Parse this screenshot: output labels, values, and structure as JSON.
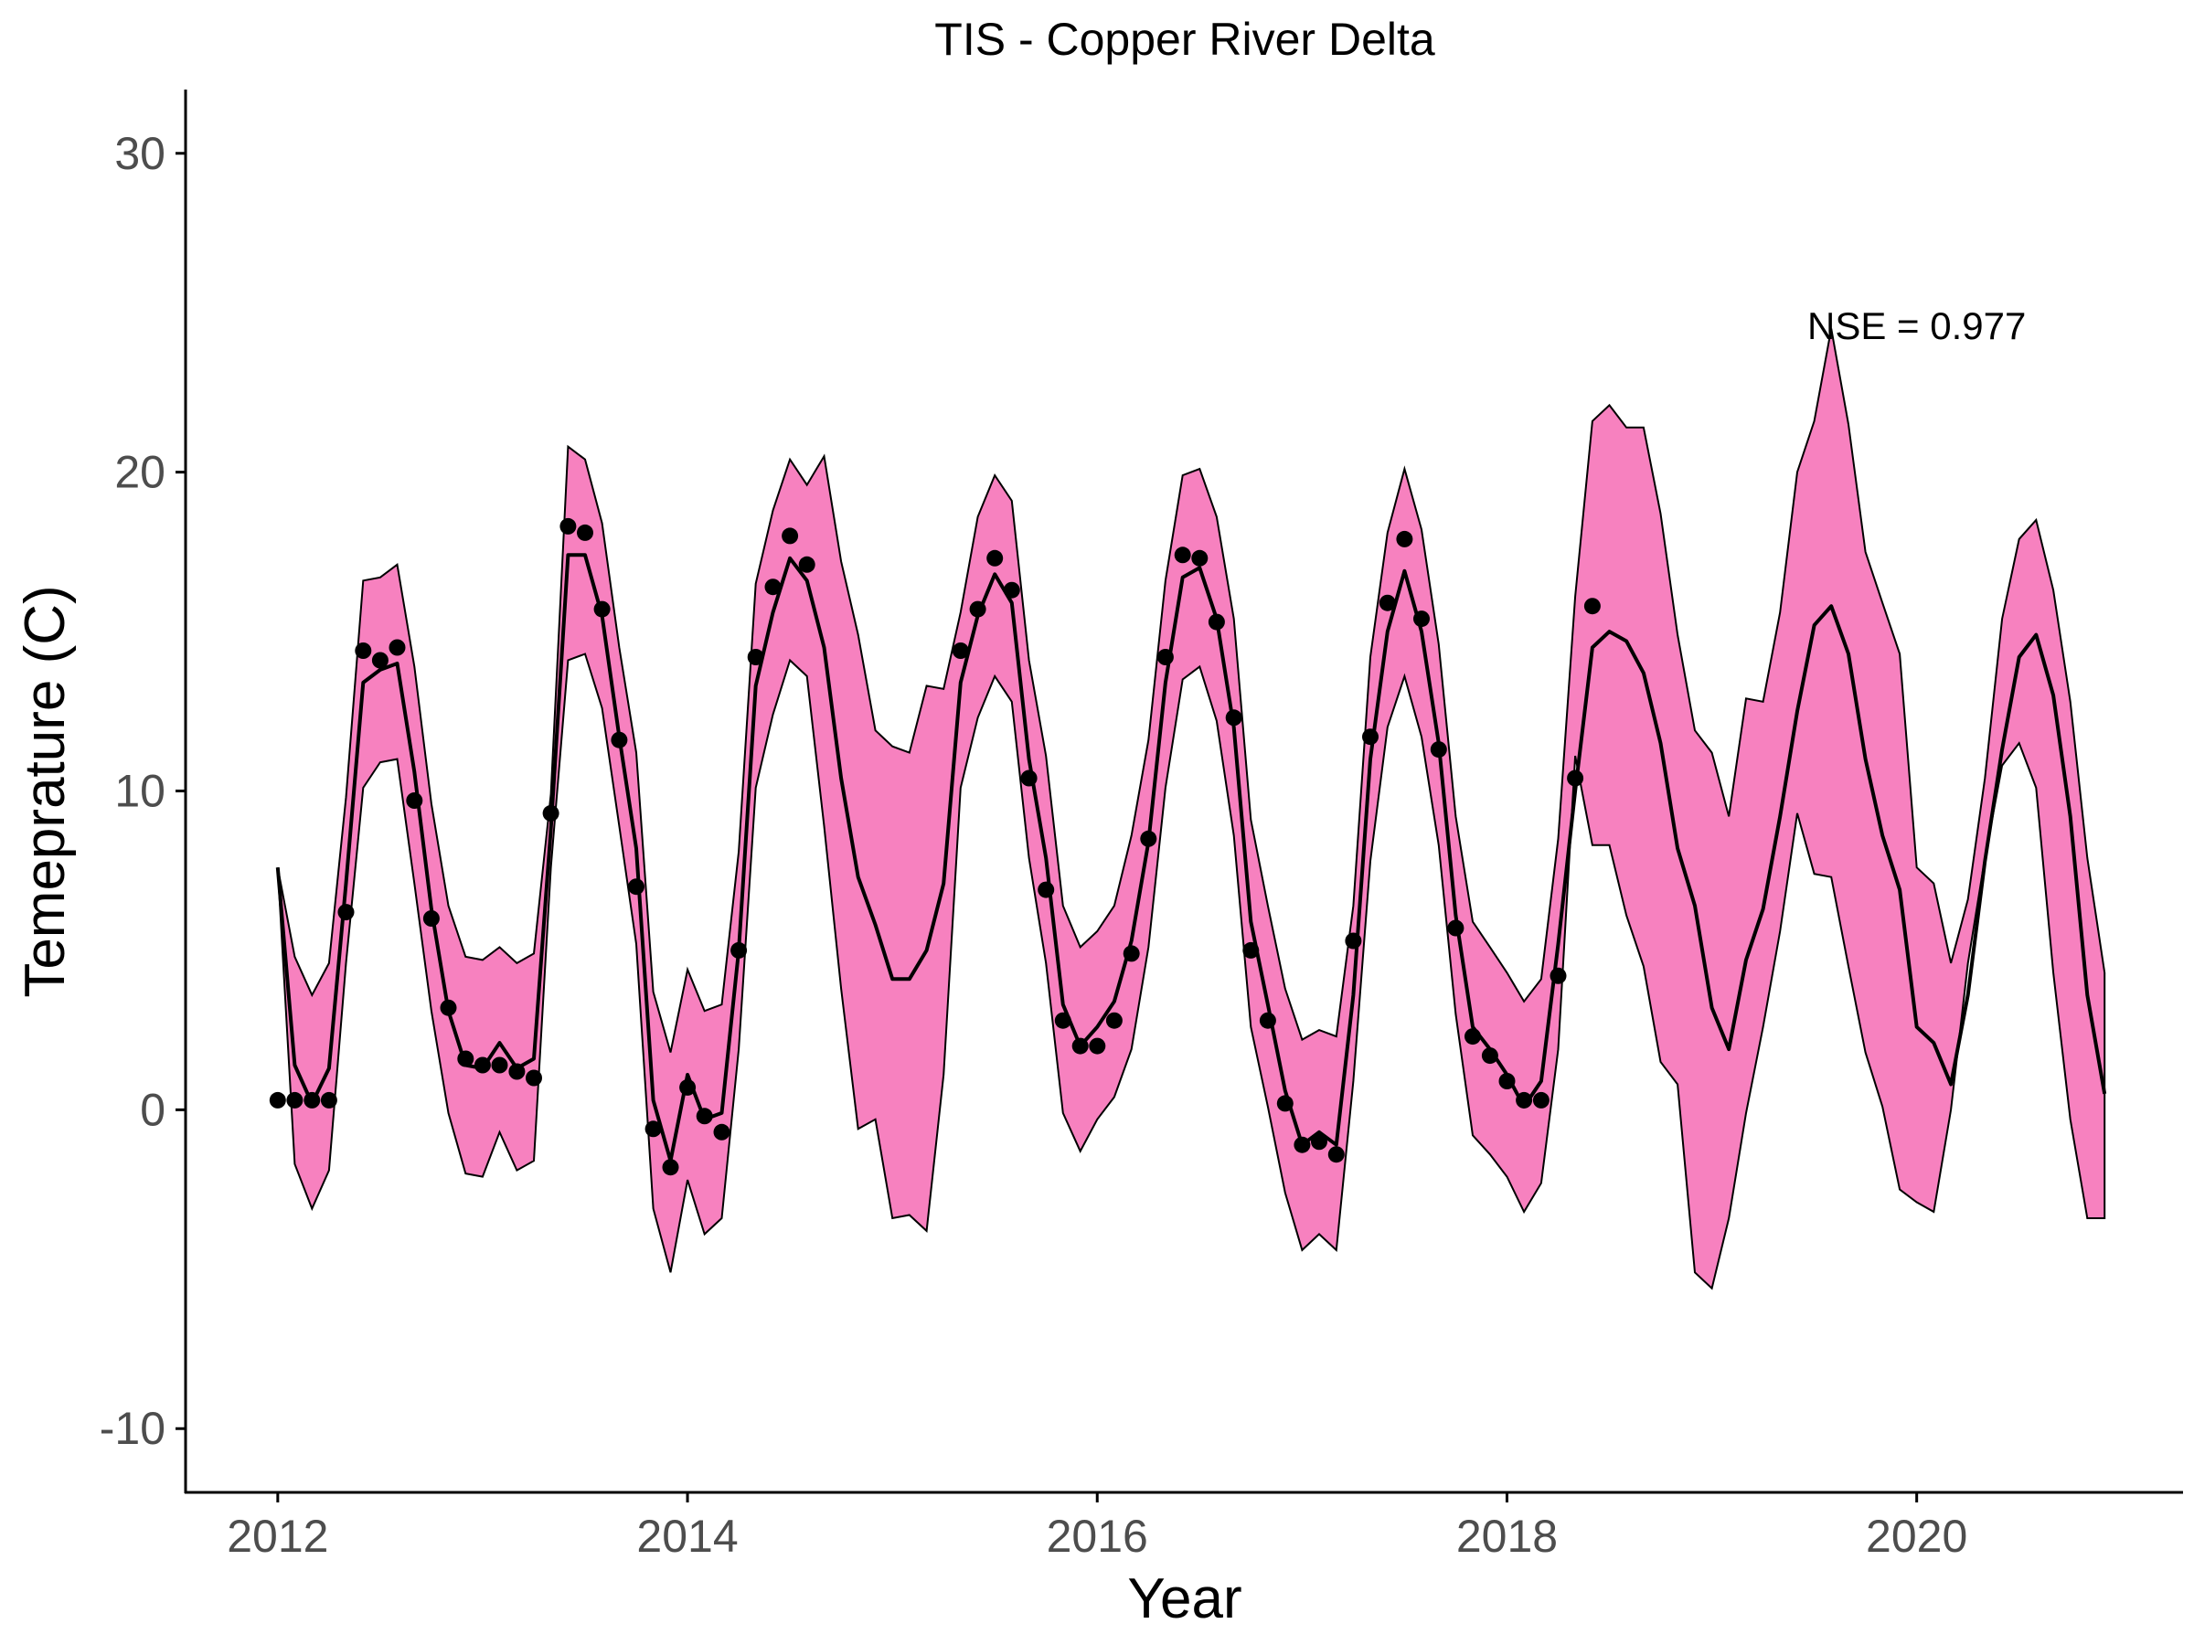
{
  "chart_data": {
    "type": "line",
    "title": "TIS - Copper River Delta",
    "xlabel": "Year",
    "ylabel": "Temeprature (C)",
    "xlim": [
      2011.55,
      2021.3
    ],
    "ylim": [
      -12,
      32
    ],
    "x_ticks": [
      2012,
      2014,
      2016,
      2018,
      2020
    ],
    "y_ticks": [
      -10,
      0,
      10,
      20,
      30
    ],
    "grid": false,
    "legend": "none",
    "annotation": {
      "text": "NSE = 0.977",
      "x": 2020.0,
      "y": 24.6
    },
    "colors": {
      "band_fill": "#f781bf",
      "line": "#000000",
      "points": "#000000"
    },
    "series": [
      {
        "kind": "interval_band",
        "x": [
          2012.0,
          2012.083,
          2012.167,
          2012.25,
          2012.333,
          2012.417,
          2012.5,
          2012.583,
          2012.667,
          2012.75,
          2012.833,
          2012.917,
          2013.0,
          2013.083,
          2013.167,
          2013.25,
          2013.333,
          2013.417,
          2013.5,
          2013.583,
          2013.667,
          2013.75,
          2013.833,
          2013.917,
          2014.0,
          2014.083,
          2014.167,
          2014.25,
          2014.333,
          2014.417,
          2014.5,
          2014.583,
          2014.667,
          2014.75,
          2014.833,
          2014.917,
          2015.0,
          2015.083,
          2015.167,
          2015.25,
          2015.333,
          2015.417,
          2015.5,
          2015.583,
          2015.667,
          2015.75,
          2015.833,
          2015.917,
          2016.0,
          2016.083,
          2016.167,
          2016.25,
          2016.333,
          2016.417,
          2016.5,
          2016.583,
          2016.667,
          2016.75,
          2016.833,
          2016.917,
          2017.0,
          2017.083,
          2017.167,
          2017.25,
          2017.333,
          2017.417,
          2017.5,
          2017.583,
          2017.667,
          2017.75,
          2017.833,
          2017.917,
          2018.0,
          2018.083,
          2018.167,
          2018.25,
          2018.333,
          2018.417,
          2018.5,
          2018.583,
          2018.667,
          2018.75,
          2018.833,
          2018.917,
          2019.0,
          2019.083,
          2019.167,
          2019.25,
          2019.333,
          2019.417,
          2019.5,
          2019.583,
          2019.667,
          2019.75,
          2019.833,
          2019.917,
          2020.0,
          2020.083,
          2020.167,
          2020.25,
          2020.333,
          2020.417,
          2020.5,
          2020.583,
          2020.667,
          2020.75,
          2020.833,
          2020.917
        ],
        "upper": [
          7.6,
          4.8,
          3.6,
          4.6,
          9.8,
          16.6,
          16.7,
          17.1,
          13.9,
          9.6,
          6.4,
          4.8,
          4.7,
          5.1,
          4.6,
          4.9,
          9.9,
          20.8,
          20.4,
          18.4,
          14.5,
          11.2,
          3.7,
          1.8,
          4.4,
          3.1,
          3.3,
          8.1,
          16.5,
          18.8,
          20.4,
          19.6,
          20.5,
          17.2,
          14.9,
          11.9,
          11.4,
          11.2,
          13.3,
          13.2,
          15.6,
          18.6,
          19.9,
          19.1,
          14.1,
          11.1,
          6.4,
          5.1,
          5.6,
          6.4,
          8.6,
          11.6,
          16.6,
          19.9,
          20.1,
          18.6,
          15.4,
          9.1,
          6.4,
          3.8,
          2.2,
          2.5,
          2.3,
          6.4,
          14.2,
          18.1,
          20.1,
          18.2,
          14.6,
          9.2,
          5.9,
          5.1,
          4.3,
          3.4,
          4.1,
          8.5,
          16.1,
          21.6,
          22.1,
          21.4,
          21.4,
          18.7,
          14.9,
          11.9,
          11.2,
          9.2,
          12.9,
          12.8,
          15.6,
          20.0,
          21.6,
          24.5,
          21.5,
          17.5,
          15.9,
          14.3,
          7.6,
          7.1,
          4.6,
          6.6,
          10.4,
          15.4,
          17.9,
          18.5,
          16.3,
          12.8,
          7.9,
          4.3
        ],
        "lower": [
          7.6,
          -1.7,
          -3.1,
          -1.9,
          4.6,
          10.1,
          10.9,
          11.0,
          7.1,
          3.1,
          -0.1,
          -2.0,
          -2.1,
          -0.7,
          -1.9,
          -1.6,
          7.6,
          14.1,
          14.3,
          12.6,
          8.9,
          5.2,
          -3.1,
          -5.1,
          -2.2,
          -3.9,
          -3.4,
          1.9,
          10.1,
          12.4,
          14.1,
          13.6,
          8.9,
          3.8,
          -0.6,
          -0.3,
          -3.4,
          -3.3,
          -3.8,
          1.1,
          10.1,
          12.3,
          13.6,
          12.8,
          7.9,
          4.6,
          -0.1,
          -1.3,
          -0.3,
          0.4,
          1.9,
          5.1,
          10.1,
          13.5,
          13.9,
          12.2,
          8.6,
          2.6,
          0.1,
          -2.6,
          -4.4,
          -3.9,
          -4.4,
          0.9,
          7.8,
          12.0,
          13.6,
          11.7,
          8.3,
          3.0,
          -0.8,
          -1.4,
          -2.1,
          -3.2,
          -2.3,
          1.9,
          11.1,
          8.3,
          8.3,
          6.1,
          4.5,
          1.5,
          0.8,
          -5.1,
          -5.6,
          -3.4,
          -0.1,
          2.6,
          5.6,
          9.3,
          7.4,
          7.3,
          4.5,
          1.8,
          0.1,
          -2.5,
          -2.9,
          -3.2,
          0.0,
          4.6,
          7.9,
          10.8,
          11.5,
          10.1,
          4.3,
          -0.3,
          -3.4,
          -3.4
        ]
      },
      {
        "kind": "line",
        "x": [
          2012.0,
          2012.083,
          2012.167,
          2012.25,
          2012.333,
          2012.417,
          2012.5,
          2012.583,
          2012.667,
          2012.75,
          2012.833,
          2012.917,
          2013.0,
          2013.083,
          2013.167,
          2013.25,
          2013.333,
          2013.417,
          2013.5,
          2013.583,
          2013.667,
          2013.75,
          2013.833,
          2013.917,
          2014.0,
          2014.083,
          2014.167,
          2014.25,
          2014.333,
          2014.417,
          2014.5,
          2014.583,
          2014.667,
          2014.75,
          2014.833,
          2014.917,
          2015.0,
          2015.083,
          2015.167,
          2015.25,
          2015.333,
          2015.417,
          2015.5,
          2015.583,
          2015.667,
          2015.75,
          2015.833,
          2015.917,
          2016.0,
          2016.083,
          2016.167,
          2016.25,
          2016.333,
          2016.417,
          2016.5,
          2016.583,
          2016.667,
          2016.75,
          2016.833,
          2016.917,
          2017.0,
          2017.083,
          2017.167,
          2017.25,
          2017.333,
          2017.417,
          2017.5,
          2017.583,
          2017.667,
          2017.75,
          2017.833,
          2017.917,
          2018.0,
          2018.083,
          2018.167,
          2018.25,
          2018.333,
          2018.417,
          2018.5,
          2018.583,
          2018.667,
          2018.75,
          2018.833,
          2018.917,
          2019.0,
          2019.083,
          2019.167,
          2019.25,
          2019.333,
          2019.417,
          2019.5,
          2019.583,
          2019.667,
          2019.75,
          2019.833,
          2019.917,
          2020.0,
          2020.083,
          2020.167,
          2020.25,
          2020.333,
          2020.417,
          2020.5,
          2020.583,
          2020.667,
          2020.75,
          2020.833,
          2020.917
        ],
        "y": [
          7.6,
          1.4,
          0.2,
          1.3,
          7.1,
          13.4,
          13.8,
          14.0,
          10.6,
          6.3,
          3.1,
          1.4,
          1.3,
          2.1,
          1.3,
          1.6,
          8.8,
          17.4,
          17.4,
          15.5,
          11.7,
          8.2,
          0.3,
          -1.6,
          1.1,
          -0.3,
          -0.1,
          5.0,
          13.3,
          15.6,
          17.3,
          16.6,
          14.5,
          10.4,
          7.3,
          5.8,
          4.1,
          4.1,
          5.0,
          7.1,
          13.4,
          15.5,
          16.8,
          15.9,
          11.0,
          7.9,
          3.3,
          2.0,
          2.6,
          3.4,
          5.3,
          8.4,
          13.4,
          16.7,
          17.0,
          15.4,
          12.0,
          5.9,
          3.3,
          0.6,
          -1.1,
          -0.7,
          -1.1,
          3.6,
          11.0,
          15.0,
          16.9,
          15.0,
          11.5,
          6.1,
          2.6,
          1.9,
          1.1,
          0.1,
          0.9,
          5.2,
          10.0,
          14.5,
          15.0,
          14.7,
          13.7,
          11.5,
          8.2,
          6.4,
          3.2,
          1.9,
          4.7,
          6.3,
          9.2,
          12.5,
          15.2,
          15.8,
          14.3,
          11.0,
          8.6,
          6.9,
          2.6,
          2.1,
          0.8,
          3.6,
          7.8,
          11.3,
          14.2,
          14.9,
          13.0,
          9.2,
          3.6,
          0.5
        ]
      },
      {
        "kind": "points",
        "x": [
          2012.0,
          2012.083,
          2012.167,
          2012.25,
          2012.333,
          2012.417,
          2012.5,
          2012.583,
          2012.667,
          2012.75,
          2012.833,
          2012.917,
          2013.0,
          2013.083,
          2013.167,
          2013.25,
          2013.333,
          2013.417,
          2013.5,
          2013.583,
          2013.667,
          2013.75,
          2013.833,
          2013.917,
          2014.0,
          2014.083,
          2014.167,
          2014.25,
          2014.333,
          2014.417,
          2014.5,
          2014.583,
          2015.333,
          2015.417,
          2015.5,
          2015.583,
          2015.667,
          2015.75,
          2015.833,
          2015.917,
          2016.0,
          2016.083,
          2016.167,
          2016.25,
          2016.333,
          2016.417,
          2016.5,
          2016.583,
          2016.667,
          2016.75,
          2016.833,
          2016.917,
          2017.0,
          2017.083,
          2017.167,
          2017.25,
          2017.333,
          2017.417,
          2017.5,
          2017.583,
          2017.667,
          2017.75,
          2017.833,
          2017.917,
          2018.0,
          2018.083,
          2018.167,
          2018.25,
          2018.333,
          2018.417
        ],
        "y": [
          0.3,
          0.3,
          0.3,
          0.3,
          6.2,
          14.4,
          14.1,
          14.5,
          9.7,
          6.0,
          3.2,
          1.6,
          1.4,
          1.4,
          1.2,
          1.0,
          9.3,
          18.3,
          18.1,
          15.7,
          11.6,
          7.0,
          -0.6,
          -1.8,
          0.7,
          -0.2,
          -0.7,
          5.0,
          14.2,
          16.4,
          18.0,
          17.1,
          14.4,
          15.7,
          17.3,
          16.3,
          10.4,
          6.9,
          2.8,
          2.0,
          2.0,
          2.8,
          4.9,
          8.5,
          14.2,
          17.4,
          17.3,
          15.3,
          12.3,
          5.0,
          2.8,
          0.2,
          -1.1,
          -1.0,
          -1.4,
          5.3,
          11.7,
          15.9,
          17.9,
          15.4,
          11.3,
          5.7,
          2.3,
          1.7,
          0.9,
          0.3,
          0.3,
          4.2,
          10.4,
          15.8
        ]
      }
    ]
  }
}
